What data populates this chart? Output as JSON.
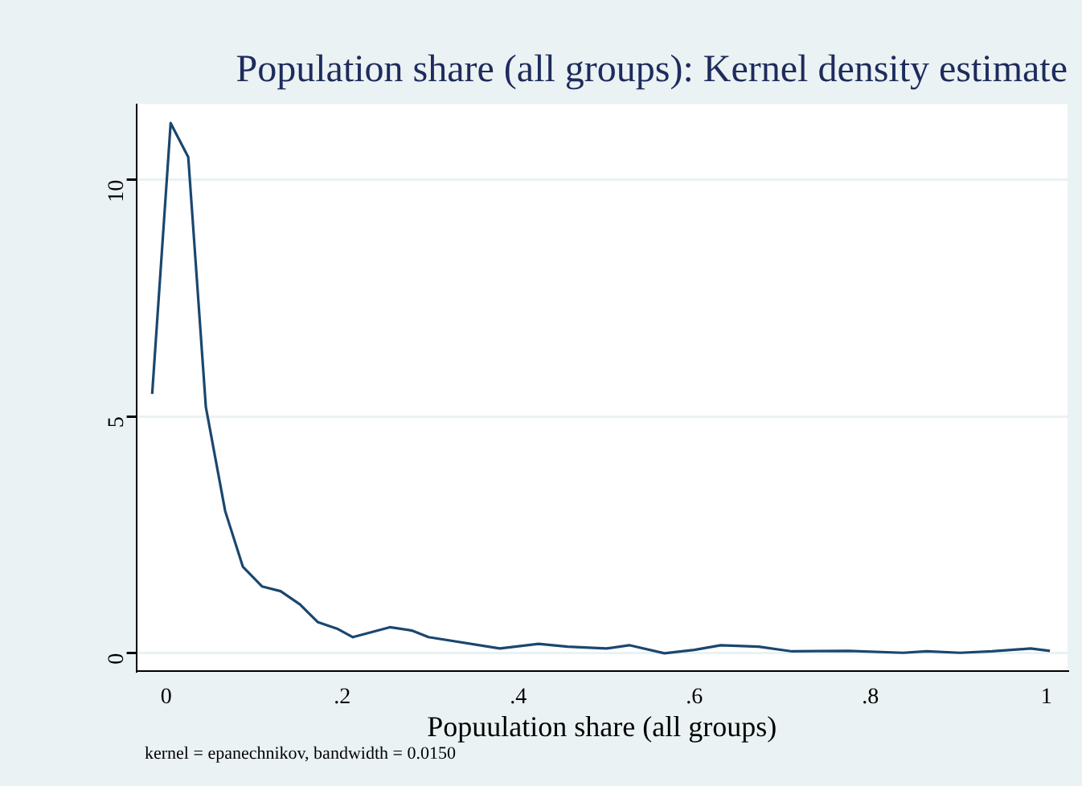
{
  "chart_data": {
    "type": "line",
    "title": "Population share (all groups): Kernel density estimate",
    "xlabel": "Popuulation share (all groups)",
    "annotations": [
      "kernel = epanechnikov, bandwidth = 0.0150"
    ],
    "x": [
      -0.016,
      0.005,
      0.025,
      0.045,
      0.067,
      0.087,
      0.109,
      0.13,
      0.152,
      0.172,
      0.194,
      0.212,
      0.254,
      0.279,
      0.298,
      0.379,
      0.423,
      0.456,
      0.5,
      0.526,
      0.566,
      0.6,
      0.63,
      0.673,
      0.711,
      0.775,
      0.837,
      0.864,
      0.902,
      0.938,
      0.982,
      1.004
    ],
    "series": [
      {
        "color": "#1a476f",
        "values": [
          5.48,
          11.2,
          10.48,
          5.2,
          3.0,
          1.83,
          1.41,
          1.31,
          1.03,
          0.66,
          0.52,
          0.34,
          0.55,
          0.48,
          0.34,
          0.1,
          0.2,
          0.14,
          0.1,
          0.17,
          0.0,
          0.07,
          0.17,
          0.14,
          0.04,
          0.05,
          0.01,
          0.04,
          0.01,
          0.04,
          0.1,
          0.05
        ]
      }
    ],
    "xlim": [
      -0.034,
      1.024
    ],
    "ylim": [
      -0.38,
      11.6
    ],
    "xticks": [
      {
        "value": 0,
        "label": "0"
      },
      {
        "value": 0.2,
        "label": ".2"
      },
      {
        "value": 0.4,
        "label": ".4"
      },
      {
        "value": 0.6,
        "label": ".6"
      },
      {
        "value": 0.8,
        "label": ".8"
      },
      {
        "value": 1,
        "label": "1"
      }
    ],
    "yticks": [
      0,
      5,
      10
    ],
    "grid": "y",
    "legend": false,
    "marker": "none",
    "line_style": "solid"
  }
}
